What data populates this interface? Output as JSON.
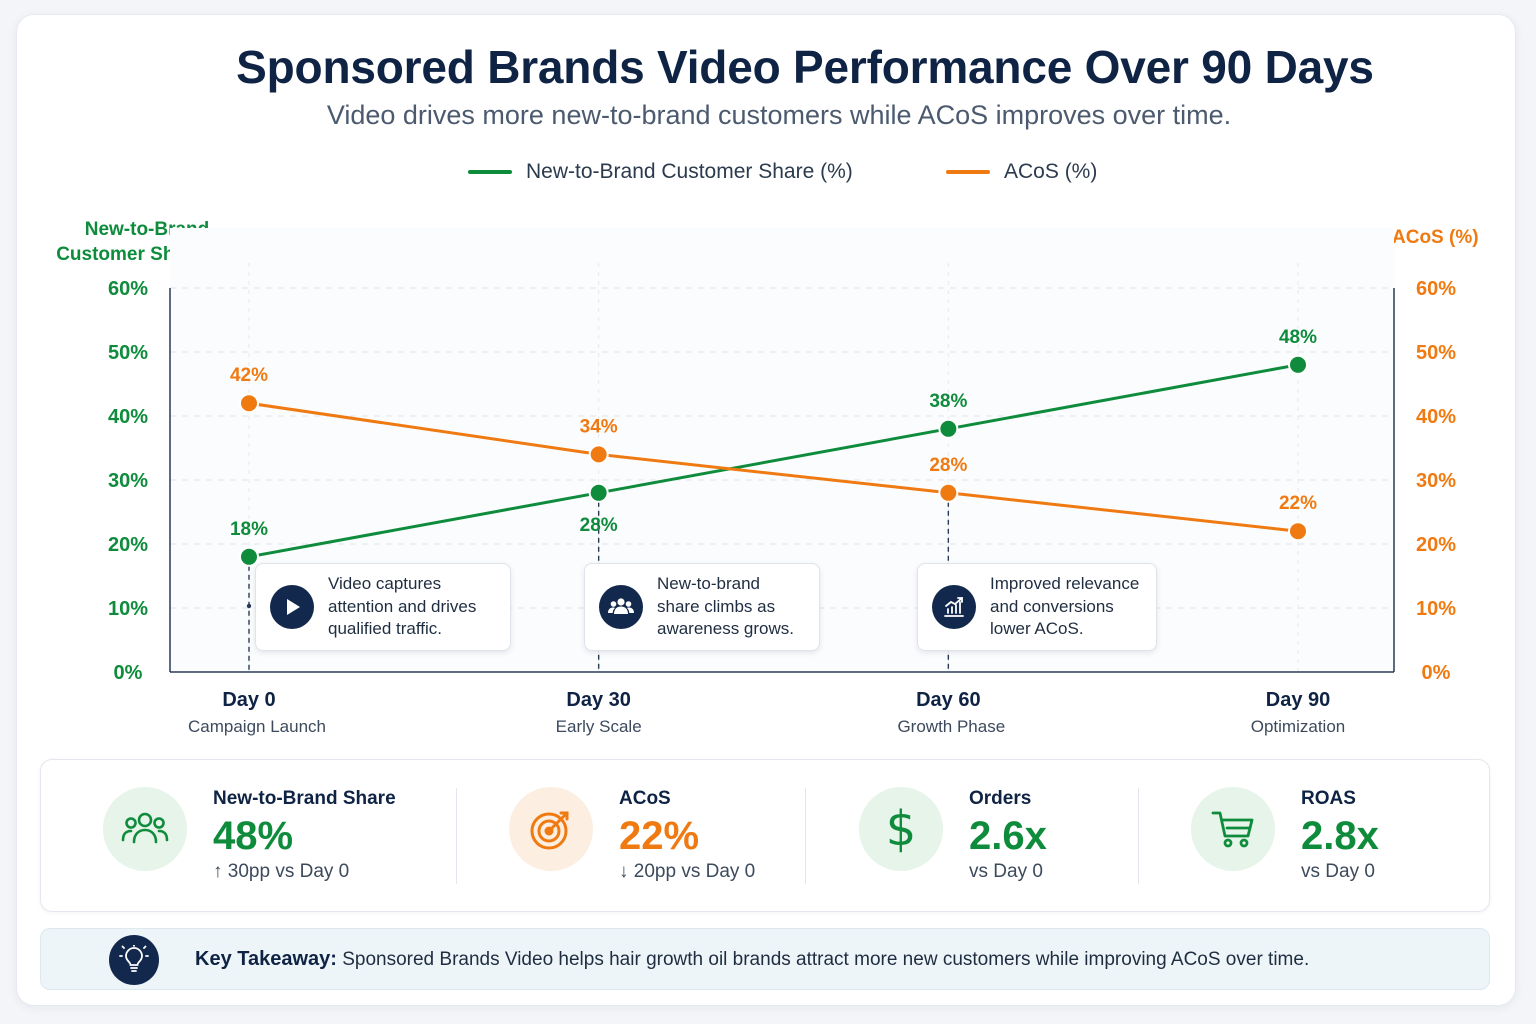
{
  "colors": {
    "green": "#0e8c3c",
    "orange": "#f07a12",
    "navy": "#12284c",
    "green_bg": "#e6f4ea",
    "orange_bg": "#fdeee2"
  },
  "chart_data": {
    "type": "line",
    "title": "Sponsored Brands Video Performance Over 90 Days",
    "subtitle": "Video drives more new-to-brand customers while ACoS improves over time.",
    "categories": [
      "Day 0",
      "Day 30",
      "Day 60",
      "Day 90"
    ],
    "category_sublabels": [
      "Campaign Launch",
      "Early Scale",
      "Growth Phase",
      "Optimization"
    ],
    "x": [
      0,
      30,
      60,
      90
    ],
    "series": [
      {
        "name": "New-to-Brand Customer Share (%)",
        "axis": "left",
        "color": "#0e8c3c",
        "values": [
          18,
          28,
          38,
          48
        ],
        "labels": [
          "18%",
          "28%",
          "38%",
          "48%"
        ]
      },
      {
        "name": "ACoS (%)",
        "axis": "right",
        "color": "#f07a12",
        "values": [
          42,
          34,
          28,
          22
        ],
        "labels": [
          "42%",
          "34%",
          "28%",
          "22%"
        ]
      }
    ],
    "ylabel_left": "New-to-Brand Customer Share (%)",
    "ylabel_right": "ACoS (%)",
    "ylim_left": [
      0,
      60
    ],
    "ylim_right": [
      0,
      60
    ],
    "yticks_left": [
      "0%",
      "10%",
      "20%",
      "30%",
      "40%",
      "50%",
      "60%"
    ],
    "yticks_right": [
      "0%",
      "10%",
      "20%",
      "30%",
      "40%",
      "50%",
      "60%"
    ],
    "grid": true,
    "legend_position": "top-center"
  },
  "legend": {
    "item1": "New-to-Brand Customer Share (%)",
    "item2": "ACoS (%)"
  },
  "axis_titles": {
    "left_line1": "New-to-Brand",
    "left_line2": "Customer Share (%)",
    "right": "ACoS (%)"
  },
  "annotations": [
    {
      "icon": "play-icon",
      "x": 0,
      "lines": [
        "Video captures",
        "attention and drives",
        "qualified traffic."
      ]
    },
    {
      "icon": "users-icon",
      "x": 30,
      "lines": [
        "New-to-brand",
        "share climbs as",
        "awareness grows."
      ]
    },
    {
      "icon": "growth-chart-icon",
      "x": 60,
      "lines": [
        "Improved relevance",
        "and conversions",
        "lower ACoS."
      ]
    }
  ],
  "kpis": [
    {
      "icon": "users-icon",
      "label": "New-to-Brand Share",
      "value": "48%",
      "sub": "↑ 30pp vs Day 0",
      "accent": "#0e8c3c"
    },
    {
      "icon": "target-icon",
      "label": "ACoS",
      "value": "22%",
      "sub": "↓ 20pp vs Day 0",
      "accent": "#f07a12"
    },
    {
      "icon": "dollar-icon",
      "label": "Orders",
      "value": "2.6x",
      "sub": "vs Day 0",
      "accent": "#0e8c3c"
    },
    {
      "icon": "cart-icon",
      "label": "ROAS",
      "value": "2.8x",
      "sub": "vs Day 0",
      "accent": "#0e8c3c"
    }
  ],
  "takeaway": {
    "label": "Key Takeaway:",
    "text": "Sponsored Brands Video helps hair growth oil brands attract more new customers while improving ACoS over time."
  }
}
